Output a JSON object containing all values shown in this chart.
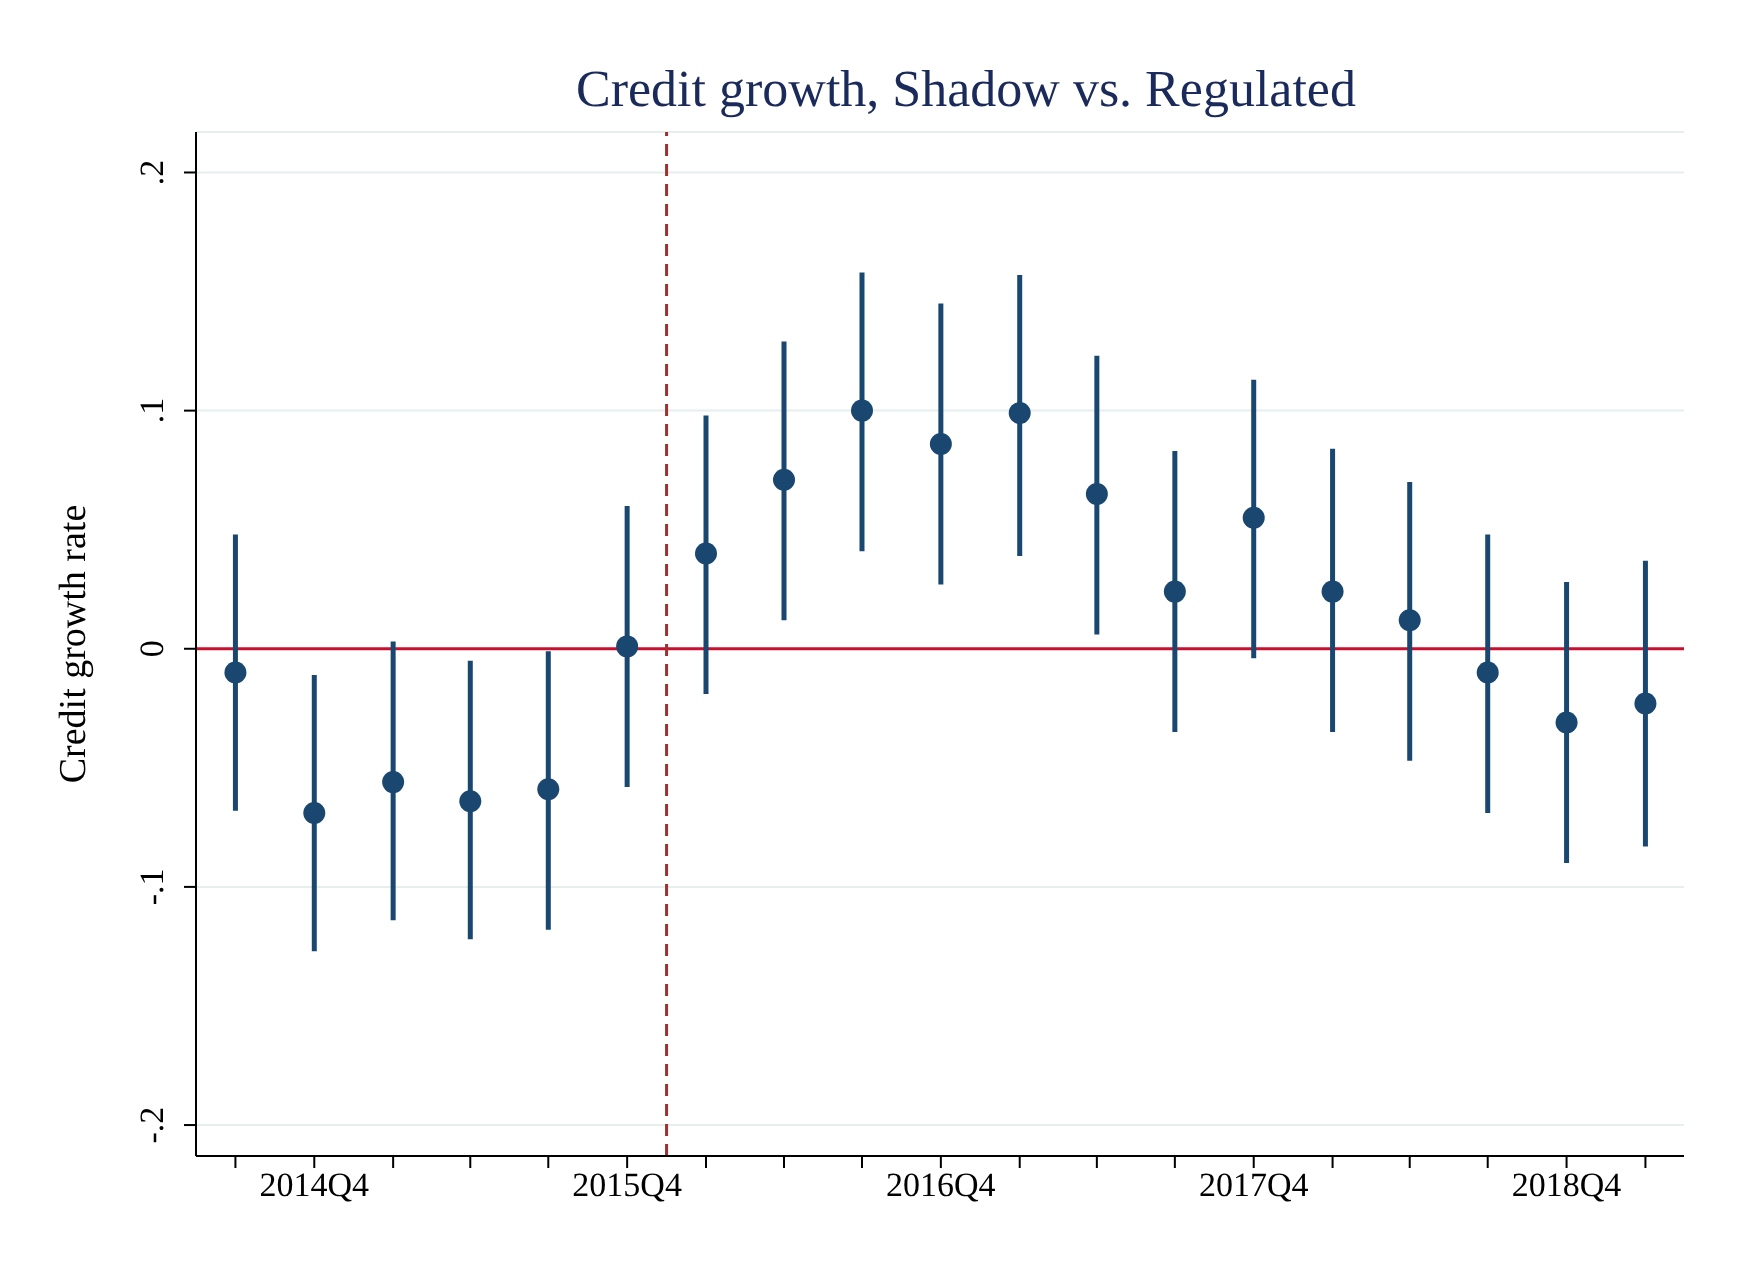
{
  "chart_data": {
    "type": "scatter",
    "title": "Credit growth, Shadow vs. Regulated",
    "ylabel": "Credit growth rate",
    "x": [
      "2014-07",
      "2014-10",
      "2015-01",
      "2015-04",
      "2015-07",
      "2015-10",
      "2016-01",
      "2016-04",
      "2016-07",
      "2016-10",
      "2017-01",
      "2017-04",
      "2017-07",
      "2017-10",
      "2018-01",
      "2018-04",
      "2018-07",
      "2018-10",
      "2019-01"
    ],
    "series": [
      {
        "color": "#1a476f",
        "values": [
          -0.01,
          -0.069,
          -0.056,
          -0.064,
          -0.059,
          0.001,
          0.04,
          0.071,
          0.1,
          0.086,
          0.099,
          0.065,
          0.024,
          0.055,
          0.024,
          0.012,
          -0.01,
          -0.031,
          -0.023
        ],
        "errors": [
          [
            -0.068,
            0.048
          ],
          [
            -0.127,
            -0.011
          ],
          [
            -0.114,
            0.003
          ],
          [
            -0.122,
            -0.005
          ],
          [
            -0.118,
            -0.001
          ],
          [
            -0.058,
            0.06
          ],
          [
            -0.019,
            0.098
          ],
          [
            0.012,
            0.129
          ],
          [
            0.041,
            0.158
          ],
          [
            0.027,
            0.145
          ],
          [
            0.039,
            0.157
          ],
          [
            0.006,
            0.123
          ],
          [
            -0.035,
            0.083
          ],
          [
            -0.004,
            0.113
          ],
          [
            -0.035,
            0.084
          ],
          [
            -0.047,
            0.07
          ],
          [
            -0.069,
            0.048
          ],
          [
            -0.09,
            0.028
          ],
          [
            -0.083,
            0.037
          ]
        ]
      }
    ],
    "xlim": [
      "2014-05-16",
      "2019-02-15"
    ],
    "xticks": [
      {
        "value": "2014-07",
        "label": null
      },
      {
        "value": "2014-10",
        "label": "2014Q4"
      },
      {
        "value": "2015-01",
        "label": null
      },
      {
        "value": "2015-04",
        "label": null
      },
      {
        "value": "2015-07",
        "label": null
      },
      {
        "value": "2015-10",
        "label": "2015Q4"
      },
      {
        "value": "2016-01",
        "label": null
      },
      {
        "value": "2016-04",
        "label": null
      },
      {
        "value": "2016-07",
        "label": null
      },
      {
        "value": "2016-10",
        "label": "2016Q4"
      },
      {
        "value": "2017-01",
        "label": null
      },
      {
        "value": "2017-04",
        "label": null
      },
      {
        "value": "2017-07",
        "label": null
      },
      {
        "value": "2017-10",
        "label": "2017Q4"
      },
      {
        "value": "2018-01",
        "label": null
      },
      {
        "value": "2018-04",
        "label": null
      },
      {
        "value": "2018-07",
        "label": null
      },
      {
        "value": "2018-10",
        "label": "2018Q4"
      },
      {
        "value": "2019-01",
        "label": null
      }
    ],
    "ylim": [
      -0.213,
      0.217
    ],
    "yticks": [
      {
        "value": -0.2,
        "label": "-.2"
      },
      {
        "value": -0.1,
        "label": "-.1"
      },
      0,
      {
        "value": 0.1,
        "label": ".1"
      },
      {
        "value": 0.2,
        "label": ".2"
      }
    ],
    "ref_lines": [
      {
        "axis": "y",
        "value": 0,
        "color": "#c8102e",
        "line_style": "solid"
      },
      {
        "axis": "x",
        "value": "2015-11-16",
        "color": "#a03030",
        "line_style": "dashed"
      }
    ],
    "grid": "y",
    "marker": "circle"
  }
}
